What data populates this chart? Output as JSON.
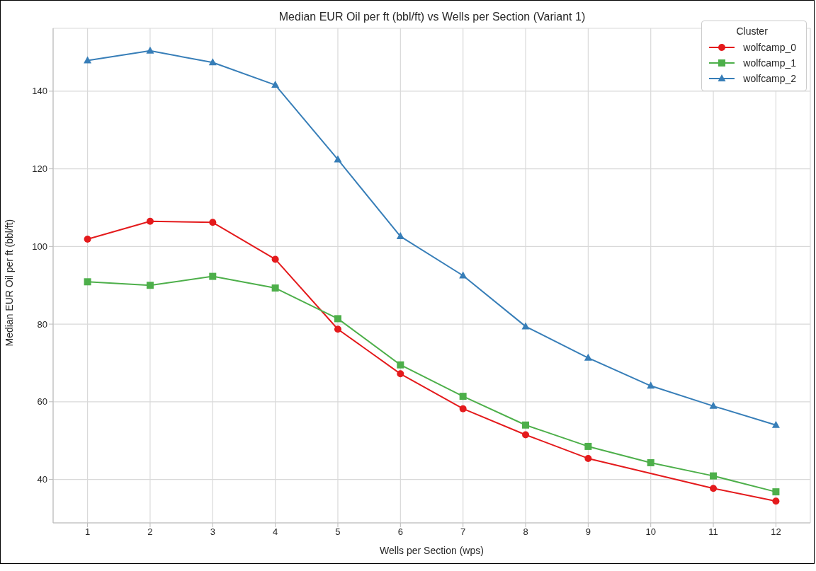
{
  "chart_data": {
    "type": "line",
    "title": "Median EUR Oil per ft (bbl/ft) vs Wells per Section (Variant 1)",
    "xlabel": "Wells per Section (wps)",
    "ylabel": "Median EUR Oil per ft (bbl/ft)",
    "legend_title": "Cluster",
    "legend": "top right",
    "grid": true,
    "line_style": "solid",
    "x": [
      1,
      2,
      3,
      4,
      5,
      6,
      7,
      8,
      9,
      10,
      11,
      12
    ],
    "xlim": [
      0.45,
      12.55
    ],
    "xticks": [
      1,
      2,
      3,
      4,
      5,
      6,
      7,
      8,
      9,
      10,
      11,
      12
    ],
    "ylim": [
      28.8,
      156.2
    ],
    "yticks": [
      40,
      60,
      80,
      100,
      120,
      140
    ],
    "series": [
      {
        "name": "wolfcamp_0",
        "color": "#e41a1c",
        "marker": "circle",
        "values": [
          101.9,
          106.5,
          106.2,
          96.7,
          78.7,
          67.2,
          58.2,
          51.5,
          45.4,
          null,
          37.7,
          34.4
        ]
      },
      {
        "name": "wolfcamp_1",
        "color": "#4daf4a",
        "marker": "square",
        "values": [
          90.9,
          90.0,
          92.3,
          89.3,
          81.4,
          69.5,
          61.4,
          54.0,
          48.5,
          44.3,
          40.9,
          36.8
        ]
      },
      {
        "name": "wolfcamp_2",
        "color": "#377eb8",
        "marker": "triangle",
        "values": [
          147.9,
          150.4,
          147.4,
          141.6,
          122.4,
          102.6,
          92.5,
          79.4,
          71.3,
          64.1,
          58.9,
          54.0
        ]
      }
    ]
  }
}
